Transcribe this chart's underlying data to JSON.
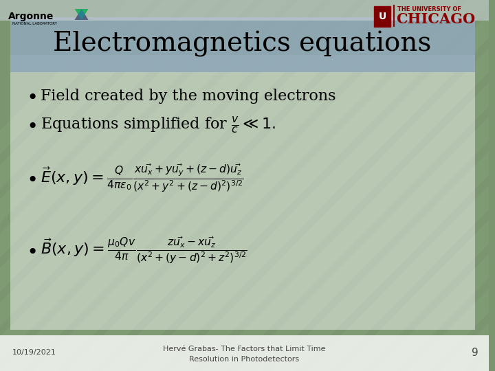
{
  "title": "Electromagnetics equations",
  "title_fontsize": 28,
  "title_bg_color": "#8fa8b8",
  "content_bg_color": "#ffffff",
  "content_bg_alpha": 0.45,
  "slide_bg_color": "#7a9570",
  "footer_date": "10/19/2021",
  "footer_page": "9",
  "footer_line1": "Hervé Grabas- The Factors that Limit Time",
  "footer_line2": "Resolution in Photodetectors",
  "bullet1": "Field created by the moving electrons",
  "content_fontsize": 16,
  "eq_fontsize": 16,
  "footer_fontsize": 8,
  "argonne_color": "#000000",
  "chicago_color": "#8b0000",
  "tri_red": "#c0392b",
  "tri_green": "#27ae60",
  "tri_blue": "#2980b9",
  "tri_orange": "#e67e22"
}
